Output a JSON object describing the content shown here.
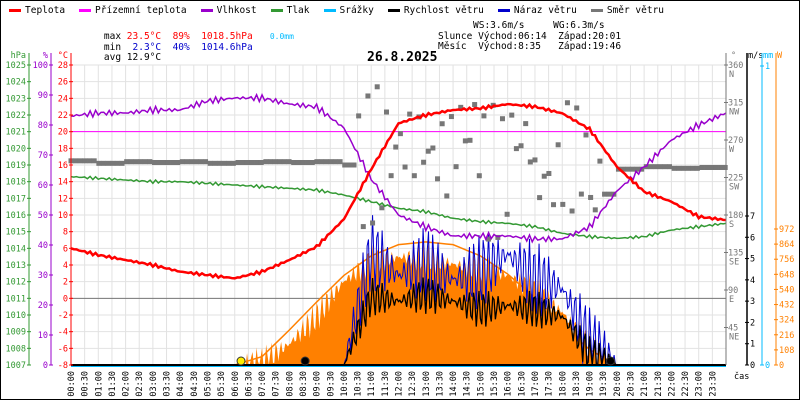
{
  "legend": [
    {
      "label": "Teplota",
      "color": "#ff0000"
    },
    {
      "label": "Přízemní teplota",
      "color": "#ff00ff"
    },
    {
      "label": "Vlhkost",
      "color": "#9900cc"
    },
    {
      "label": "Tlak",
      "color": "#339933"
    },
    {
      "label": "Srážky",
      "color": "#00bbff"
    },
    {
      "label": "Rychlost větru",
      "color": "#000000"
    },
    {
      "label": "Náraz větru",
      "color": "#0000cc"
    },
    {
      "label": "Směr větru",
      "color": "#777777"
    }
  ],
  "stats": {
    "max_label": "max",
    "max_temp": "23.5°C",
    "max_hum": "89%",
    "max_press": "1018.5hPa",
    "max_rain": "0.0mm",
    "min_label": "min",
    "min_temp": "2.3°C",
    "min_hum": "40%",
    "min_press": "1014.6hPa",
    "avg_label": "avg",
    "avg_temp": "12.9°C",
    "ws": "WS:3.6m/s",
    "wg": "WG:6.3m/s",
    "sun_label": "Slunce",
    "sunrise": "Východ:06:14",
    "sunset": "Západ:20:01",
    "moon_label": "Měsíc",
    "moonrise": "Východ:8:35",
    "moonset": "Západ:19:46"
  },
  "colors": {
    "temp": "#ff0000",
    "apparent": "#ff00ff",
    "hum": "#9900cc",
    "press": "#339933",
    "rain": "#00bbff",
    "wind": "#000000",
    "gust": "#0000cc",
    "dir": "#777777",
    "solar": "#ff8000"
  },
  "chart_data": {
    "type": "line",
    "title": "26.8.2025",
    "xlabel": "čas",
    "x_ticks": [
      "00:00",
      "00:30",
      "01:00",
      "01:30",
      "02:00",
      "02:30",
      "03:00",
      "03:30",
      "04:00",
      "04:30",
      "05:00",
      "05:30",
      "06:00",
      "06:30",
      "07:00",
      "07:30",
      "08:00",
      "08:30",
      "09:00",
      "09:30",
      "10:00",
      "10:30",
      "11:00",
      "11:30",
      "12:00",
      "12:30",
      "13:00",
      "13:30",
      "14:00",
      "14:30",
      "15:00",
      "15:30",
      "16:00",
      "16:30",
      "17:00",
      "17:30",
      "18:00",
      "18:30",
      "19:00",
      "19:30",
      "20:00",
      "20:30",
      "21:00",
      "21:30",
      "22:00",
      "22:30",
      "23:00",
      "23:30"
    ],
    "axes": {
      "press": {
        "unit": "hPa",
        "range": [
          1007,
          1025
        ],
        "ticks": [
          "1025",
          "1024",
          "1023",
          "1022",
          "1021",
          "1020",
          "1019",
          "1018",
          "1017",
          "1016",
          "1015",
          "1014",
          "1013",
          "1012",
          "1011",
          "1010",
          "1009",
          "1008",
          "1007"
        ]
      },
      "hum": {
        "unit": "%",
        "range": [
          0,
          100
        ],
        "ticks": [
          "100",
          "90",
          "80",
          "70",
          "60",
          "50",
          "40",
          "30",
          "20",
          "10",
          "0"
        ]
      },
      "temp": {
        "unit": "°C",
        "range": [
          -8,
          28
        ],
        "ticks": [
          "28",
          "26",
          "24",
          "22",
          "20",
          "18",
          "16",
          "14",
          "12",
          "10",
          "8",
          "6",
          "4",
          "2",
          "0",
          "-2",
          "-4",
          "-6",
          "-8"
        ]
      },
      "dir": {
        "unit": "°",
        "range": [
          0,
          360
        ],
        "ticks": [
          {
            "v": "360",
            "d": "N"
          },
          {
            "v": "315",
            "d": "NW"
          },
          {
            "v": "270",
            "d": "W"
          },
          {
            "v": "225",
            "d": "SW"
          },
          {
            "v": "180",
            "d": "S"
          },
          {
            "v": "135",
            "d": "SE"
          },
          {
            "v": "90",
            "d": "E"
          },
          {
            "v": "45",
            "d": "NE"
          }
        ]
      },
      "wind": {
        "unit": "m/s",
        "range": [
          0,
          7
        ],
        "ticks": [
          "7",
          "6",
          "5",
          "4",
          "3",
          "2",
          "1",
          "0"
        ]
      },
      "rain": {
        "unit": "mm",
        "range": [
          0,
          1
        ],
        "ticks": [
          "1",
          "0"
        ]
      },
      "solar": {
        "unit": "W",
        "range": [
          0,
          972
        ],
        "ticks": [
          "972",
          "864",
          "756",
          "648",
          "540",
          "432",
          "324",
          "216",
          "108",
          "0"
        ]
      }
    },
    "hours": [
      0,
      1,
      2,
      3,
      4,
      5,
      6,
      7,
      8,
      9,
      10,
      11,
      12,
      13,
      14,
      15,
      16,
      17,
      18,
      19,
      20,
      21,
      22,
      23,
      24
    ],
    "series": [
      {
        "name": "Teplota",
        "axis": "temp",
        "values": [
          6.0,
          5.2,
          4.6,
          4.0,
          3.2,
          2.8,
          2.4,
          3.2,
          4.6,
          6.2,
          9.5,
          15.5,
          21.0,
          22.0,
          22.6,
          22.8,
          23.3,
          23.0,
          22.2,
          20.3,
          15.8,
          12.8,
          11.6,
          9.8,
          9.4
        ]
      },
      {
        "name": "Vlhkost",
        "axis": "hum",
        "values": [
          83,
          84,
          84,
          85,
          85,
          88,
          89,
          89,
          87,
          86,
          79,
          62,
          50,
          46,
          43,
          43,
          43,
          42,
          42,
          46,
          58,
          66,
          75,
          80,
          84
        ]
      },
      {
        "name": "Tlak",
        "axis": "press",
        "values": [
          1018.3,
          1018.2,
          1018.1,
          1018.0,
          1018.0,
          1017.9,
          1017.8,
          1017.7,
          1017.6,
          1017.5,
          1017.2,
          1016.8,
          1016.4,
          1016.2,
          1015.8,
          1015.6,
          1015.5,
          1015.3,
          1014.9,
          1014.7,
          1014.6,
          1014.7,
          1015.1,
          1015.3,
          1015.5
        ]
      },
      {
        "name": "Rychlost větru",
        "axis": "wind",
        "values": [
          0,
          0,
          0,
          0,
          0,
          0,
          0,
          0,
          0,
          0,
          0,
          3.2,
          3.0,
          3.3,
          3.0,
          2.6,
          2.8,
          2.6,
          2.3,
          0.5,
          0,
          0,
          0,
          0,
          0
        ]
      },
      {
        "name": "Náraz větru",
        "axis": "wind",
        "values": [
          0,
          0,
          0,
          0,
          0,
          0,
          0,
          0,
          0,
          0,
          0,
          5.3,
          4.2,
          4.8,
          4.0,
          4.4,
          5.2,
          4.0,
          3.6,
          1.0,
          0,
          0,
          0,
          0,
          0
        ]
      },
      {
        "name": "Solar",
        "axis": "solar",
        "values": [
          0,
          0,
          0,
          0,
          0,
          0,
          0,
          20,
          150,
          350,
          600,
          740,
          770,
          770,
          720,
          690,
          640,
          520,
          380,
          120,
          0,
          0,
          0,
          0,
          0
        ]
      },
      {
        "name": "Solar max",
        "axis": "solar",
        "values": [
          0,
          0,
          0,
          0,
          0,
          0,
          0,
          60,
          250,
          450,
          640,
          780,
          860,
          880,
          860,
          780,
          650,
          480,
          290,
          110,
          0,
          0,
          0,
          0,
          0
        ]
      },
      {
        "name": "Směr větru",
        "axis": "dir",
        "values": [
          245,
          242,
          244,
          243,
          244,
          242,
          243,
          244,
          243,
          244,
          240,
          255,
          265,
          250,
          280,
          230,
          270,
          220,
          250,
          205,
          235,
          238,
          236,
          237,
          236
        ]
      },
      {
        "name": "Srážky",
        "axis": "rain",
        "values": [
          0,
          0,
          0,
          0,
          0,
          0,
          0,
          0,
          0,
          0,
          0,
          0,
          0,
          0,
          0,
          0,
          0,
          0,
          0,
          0,
          0,
          0,
          0,
          0,
          0
        ]
      }
    ],
    "markers": [
      {
        "name": "sunrise",
        "time": 6.23
      },
      {
        "name": "moonrise",
        "time": 8.58
      },
      {
        "name": "moonset",
        "time": 19.77
      }
    ],
    "reference_lines": [
      {
        "axis": "temp",
        "value": 20
      },
      {
        "axis": "temp",
        "value": 0
      }
    ],
    "grid": true
  }
}
